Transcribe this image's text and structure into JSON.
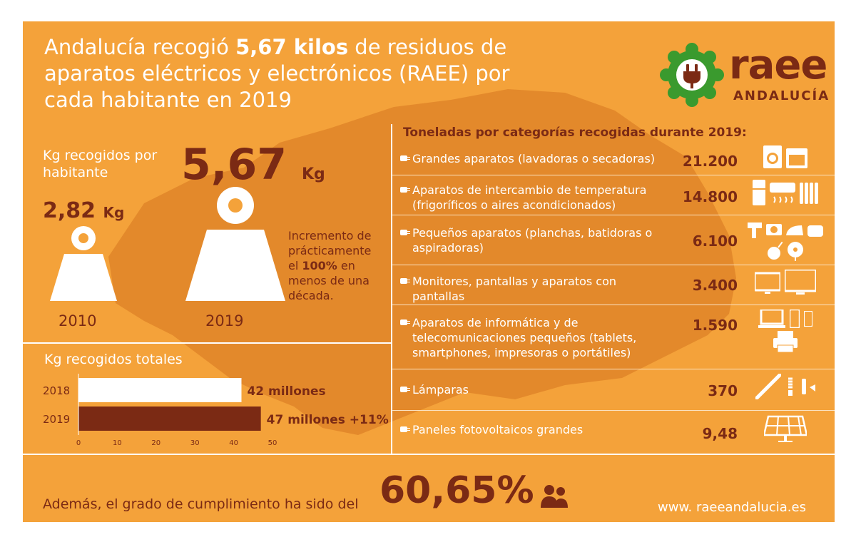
{
  "title": {
    "part1": "Andalucía recogió ",
    "highlight": "5,67 kilos",
    "part2": " de residuos de aparatos eléctricos y electrónicos (RAEE) por cada habitante en 2019"
  },
  "logo": {
    "name": "raee",
    "sub": "ANDALUCÍA",
    "icon": "plug-gear-icon"
  },
  "per_capita": {
    "label": "Kg recogidos por habitante",
    "v2010": "2,82",
    "v2019": "5,67",
    "unit": "Kg",
    "year2010": "2010",
    "year2019": "2019",
    "increase_pre": "Incremento de prácticamente el ",
    "increase_bold": "100%",
    "increase_post": " en menos de una década."
  },
  "totals": {
    "label": "Kg recogidos totales",
    "bar_colors": [
      "#ffffff",
      "#7b2a14"
    ]
  },
  "chart_data": {
    "type": "bar",
    "orientation": "horizontal",
    "title": "Kg recogidos totales",
    "categories": [
      "2018",
      "2019"
    ],
    "values": [
      42,
      47
    ],
    "value_labels": [
      "42 millones",
      "47 millones +11%"
    ],
    "xticks": [
      "0",
      "10",
      "20",
      "30",
      "40",
      "50"
    ],
    "xlim": [
      0,
      50
    ]
  },
  "categories": {
    "heading": "Toneladas por categorías recogidas durante 2019:",
    "items": [
      {
        "label": "Grandes aparatos (lavadoras o secadoras)",
        "value": "21.200",
        "icons": [
          "washing-machine-icon",
          "oven-icon"
        ]
      },
      {
        "label": "Aparatos de intercambio de temperatura (frigoríficos o aires acondicionados)",
        "value": "14.800",
        "icons": [
          "fridge-icon",
          "air-conditioner-icon",
          "radiator-icon"
        ]
      },
      {
        "label": "Pequeños aparatos (planchas, batidoras o aspiradoras)",
        "value": "6.100",
        "icons": [
          "drill-icon",
          "camera-icon",
          "iron-icon",
          "toaster-icon",
          "vacuum-icon",
          "fan-icon"
        ]
      },
      {
        "label": "Monitores, pantallas y aparatos con pantallas",
        "value": "3.400",
        "icons": [
          "monitor-icon",
          "tv-icon"
        ]
      },
      {
        "label": "Aparatos de informática y de telecomunicaciones pequeños (tablets, smartphones, impresoras o portátiles)",
        "value": "1.590",
        "icons": [
          "laptop-icon",
          "smartphone-icon",
          "phone-icon",
          "printer-icon"
        ]
      },
      {
        "label": "Lámparas",
        "value": "370",
        "icons": [
          "tube-lamp-icon",
          "bulb-icon",
          "lamp-icon"
        ]
      },
      {
        "label": "Paneles fotovoltaicos grandes",
        "value": "9,48",
        "icons": [
          "solar-panel-icon"
        ]
      }
    ]
  },
  "footer": {
    "text": "Además, el grado de cumplimiento ha sido del",
    "percent": "60,65%",
    "icon": "people-icon",
    "url": "www. raeeandalucia.es"
  },
  "colors": {
    "background": "#f4a23a",
    "map": "#e08a2c",
    "accent": "#7b2a14",
    "logo_green": "#3a9a2e"
  }
}
